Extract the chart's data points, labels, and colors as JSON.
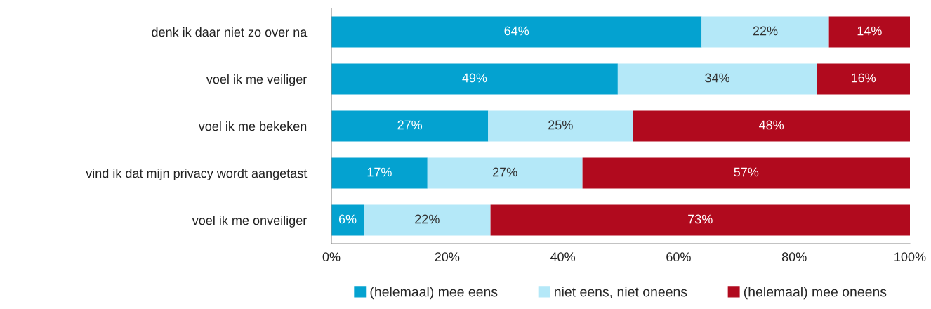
{
  "chart_data": {
    "type": "bar",
    "orientation": "horizontal",
    "stacked": true,
    "categories": [
      "denk ik daar niet zo over na",
      "voel ik me veiliger",
      "voel ik me bekeken",
      "vind ik dat mijn privacy wordt aangetast",
      "voel ik me onveiliger"
    ],
    "series": [
      {
        "name": "(helemaal) mee eens",
        "color": "#04a2d0",
        "values": [
          64.0,
          49.5,
          27.1,
          16.6,
          5.6
        ],
        "value_labels": [
          "64%",
          "49%",
          "27%",
          "17%",
          "6%"
        ]
      },
      {
        "name": "niet eens, niet oneens",
        "color": "#b4e8f8",
        "values": [
          22.0,
          34.4,
          25.0,
          26.8,
          21.9
        ],
        "value_labels": [
          "22%",
          "34%",
          "25%",
          "27%",
          "22%"
        ]
      },
      {
        "name": "(helemaal) mee oneens",
        "color": "#b10a1e",
        "values": [
          14.0,
          16.1,
          47.9,
          56.6,
          72.5
        ],
        "value_labels": [
          "14%",
          "16%",
          "48%",
          "57%",
          "73%"
        ]
      }
    ],
    "xlim": [
      0,
      100
    ],
    "xticks": [
      {
        "value": 0,
        "label": "0%"
      },
      {
        "value": 20,
        "label": "20%"
      },
      {
        "value": 40,
        "label": "40%"
      },
      {
        "value": 60,
        "label": "60%"
      },
      {
        "value": 80,
        "label": "80%"
      },
      {
        "value": 100,
        "label": "100%"
      }
    ],
    "grid": false,
    "legend": "bottom"
  }
}
